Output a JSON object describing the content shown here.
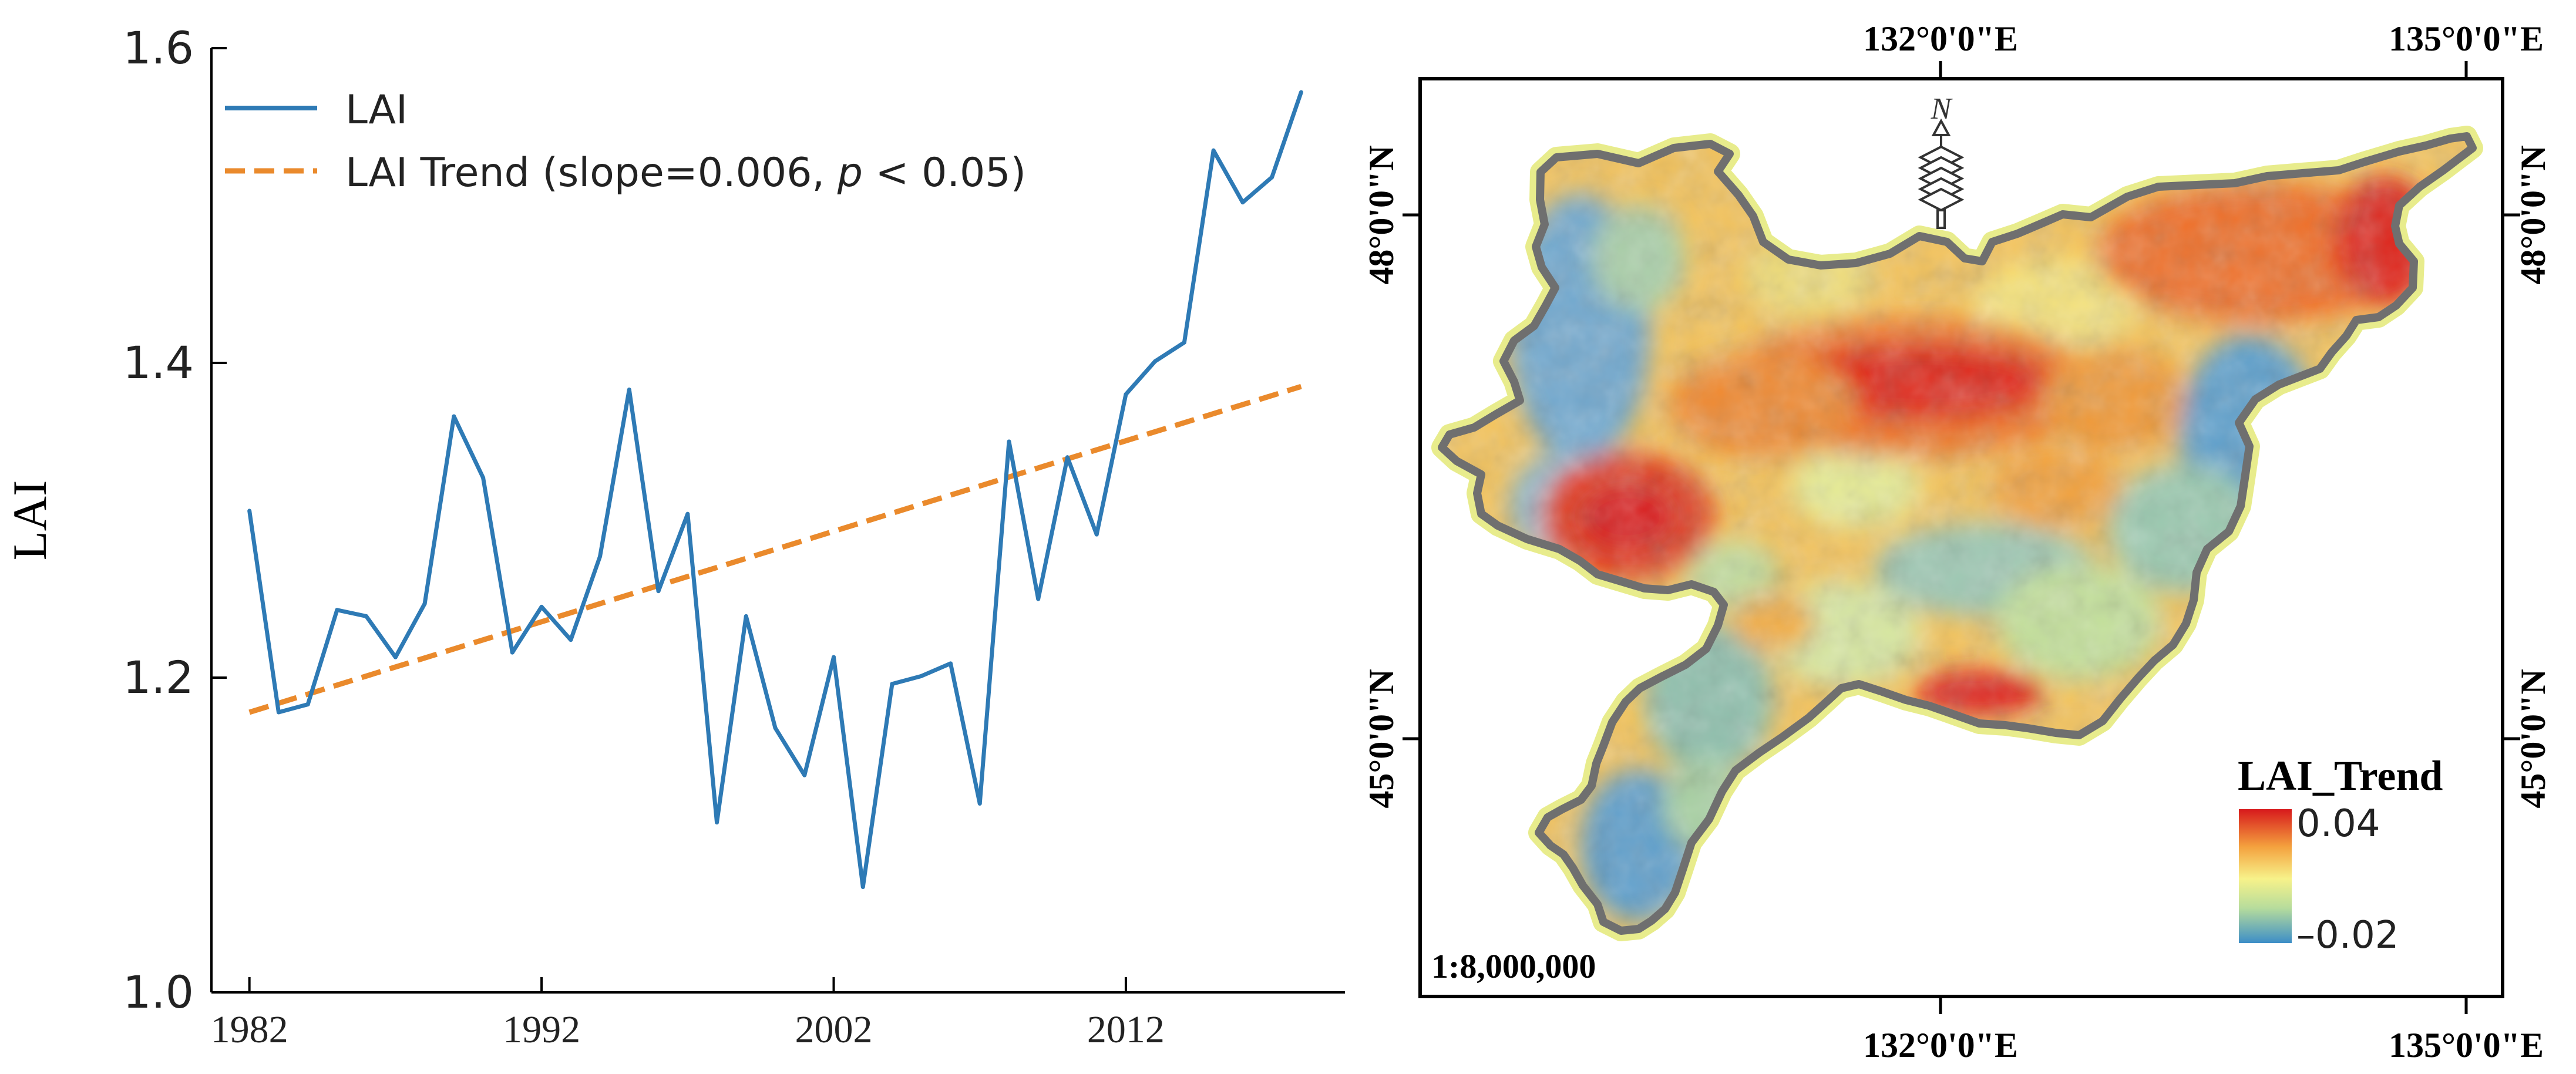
{
  "chart_data": [
    {
      "type": "line",
      "title": "",
      "xlabel": "",
      "ylabel": "LAI",
      "xlim": [
        1980.7,
        2019.5
      ],
      "ylim": [
        1.0,
        1.6
      ],
      "x_ticks": [
        1982,
        1992,
        2002,
        2012
      ],
      "x_tick_labels": [
        "1982",
        "1992",
        "2002",
        "2012"
      ],
      "y_ticks": [
        1.0,
        1.2,
        1.4,
        1.6
      ],
      "y_tick_labels": [
        "1.0",
        "1.2",
        "1.4",
        "1.6"
      ],
      "legend_position": "top-left",
      "x": [
        1982,
        1983,
        1984,
        1985,
        1986,
        1987,
        1988,
        1989,
        1990,
        1991,
        1992,
        1993,
        1994,
        1995,
        1996,
        1997,
        1998,
        1999,
        2000,
        2001,
        2002,
        2003,
        2004,
        2005,
        2006,
        2007,
        2008,
        2009,
        2010,
        2011,
        2012,
        2013,
        2014,
        2015,
        2016,
        2017,
        2018
      ],
      "series": [
        {
          "name": "LAI",
          "color": "#2e7ab5",
          "style": "solid",
          "values": [
            1.306,
            1.178,
            1.183,
            1.243,
            1.239,
            1.213,
            1.247,
            1.366,
            1.327,
            1.216,
            1.245,
            1.224,
            1.277,
            1.383,
            1.255,
            1.304,
            1.108,
            1.239,
            1.168,
            1.138,
            1.213,
            1.067,
            1.196,
            1.201,
            1.209,
            1.12,
            1.35,
            1.25,
            1.34,
            1.291,
            1.38,
            1.401,
            1.413,
            1.535,
            1.502,
            1.518,
            1.572
          ]
        }
      ],
      "trend": {
        "name_prefix": "LAI Trend (slope=0.006, ",
        "p_symbol": "p",
        "name_suffix": " < 0.05)",
        "color": "#ea8a2c",
        "style": "dashed",
        "x": [
          1982,
          2018
        ],
        "values": [
          1.178,
          1.385
        ]
      }
    },
    {
      "type": "heatmap",
      "title": "",
      "top_axis_labels": [
        "132°0'0\"E",
        "135°0'0\"E"
      ],
      "bottom_axis_labels": [
        "132°0'0\"E",
        "135°0'0\"E"
      ],
      "left_axis_labels": [
        "48°0'0\"N",
        "45°0'0\"N"
      ],
      "right_axis_labels": [
        "48°0'0\"N",
        "45°0'0\"N"
      ],
      "north_arrow_label": "N",
      "scale_text": "1:8,000,000",
      "colorbar": {
        "title": "LAI_Trend",
        "max_label": "0.04",
        "min_label": "–0.02",
        "range": [
          -0.02,
          0.04
        ],
        "colors": [
          "#d7191c",
          "#f4a13e",
          "#f7f28a",
          "#b6dc9c",
          "#3d8ec7"
        ]
      }
    }
  ]
}
